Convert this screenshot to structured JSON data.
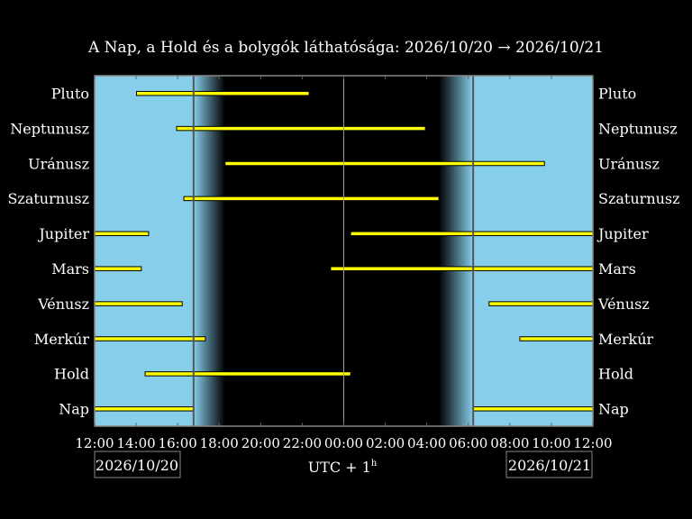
{
  "chart_data": {
    "type": "bar",
    "subtype": "timeline",
    "title": "A Nap, a Hold és a bolygók láthatósága: 2026/10/20 → 2026/10/21",
    "xlabel": "UTC + 1",
    "xlabel_superscript": "h",
    "date_start_label": "2026/10/20",
    "date_end_label": "2026/10/21",
    "x_range": [
      "2026/10/20 12:00",
      "2026/10/21 12:00"
    ],
    "x_ticks": [
      "12:00",
      "14:00",
      "16:00",
      "18:00",
      "20:00",
      "22:00",
      "00:00",
      "02:00",
      "04:00",
      "06:00",
      "08:00",
      "10:00",
      "12:00"
    ],
    "sunset": "2026/10/20 16:46",
    "dark_start": "2026/10/20 18:17",
    "dark_end": "2026/10/21 04:35",
    "sunrise": "2026/10/21 06:14",
    "midnight": "2026/10/21 00:00",
    "colors": {
      "day": "#87ceeb",
      "night": "#000000",
      "bar": "#ffff00",
      "bar_edge": "#000000",
      "frame": "#888888"
    },
    "grid": false,
    "rows": [
      {
        "name": "Pluto",
        "intervals": [
          [
            "2026/10/20 14:01",
            "2026/10/20 22:20"
          ]
        ]
      },
      {
        "name": "Neptunusz",
        "intervals": [
          [
            "2026/10/20 15:57",
            "2026/10/21 03:56"
          ]
        ]
      },
      {
        "name": "Uránusz",
        "intervals": [
          [
            "2026/10/20 18:17",
            "2026/10/21 09:40"
          ]
        ]
      },
      {
        "name": "Szaturnusz",
        "intervals": [
          [
            "2026/10/20 16:18",
            "2026/10/21 04:35"
          ]
        ]
      },
      {
        "name": "Jupiter",
        "intervals": [
          [
            "2026/10/20 12:00",
            "2026/10/20 14:36"
          ],
          [
            "2026/10/21 00:20",
            "2026/10/21 12:00"
          ]
        ]
      },
      {
        "name": "Mars",
        "intervals": [
          [
            "2026/10/20 12:00",
            "2026/10/20 14:15"
          ],
          [
            "2026/10/20 23:22",
            "2026/10/21 12:00"
          ]
        ]
      },
      {
        "name": "Vénusz",
        "intervals": [
          [
            "2026/10/20 12:00",
            "2026/10/20 16:13"
          ],
          [
            "2026/10/21 07:00",
            "2026/10/21 12:00"
          ]
        ]
      },
      {
        "name": "Merkúr",
        "intervals": [
          [
            "2026/10/20 12:00",
            "2026/10/20 17:20"
          ],
          [
            "2026/10/21 08:29",
            "2026/10/21 12:00"
          ]
        ]
      },
      {
        "name": "Hold",
        "intervals": [
          [
            "2026/10/20 14:26",
            "2026/10/21 00:20"
          ]
        ]
      },
      {
        "name": "Nap",
        "intervals": [
          [
            "2026/10/20 12:00",
            "2026/10/20 16:46"
          ],
          [
            "2026/10/21 06:14",
            "2026/10/21 12:00"
          ]
        ]
      }
    ]
  }
}
